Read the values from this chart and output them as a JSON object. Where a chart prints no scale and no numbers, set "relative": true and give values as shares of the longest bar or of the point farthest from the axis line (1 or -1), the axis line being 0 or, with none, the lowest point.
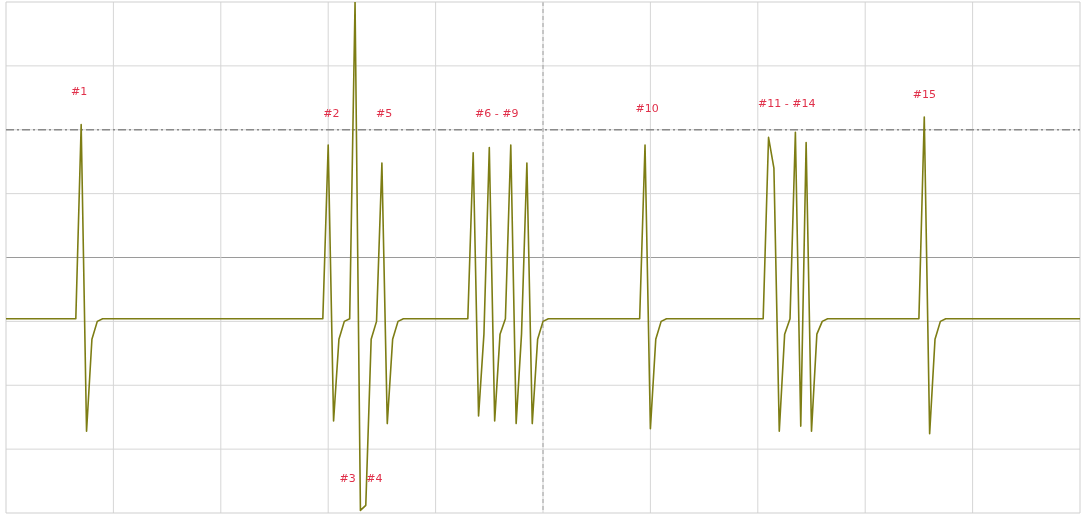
{
  "chart_data": {
    "type": "line",
    "relative": true,
    "categories": [
      null,
      null,
      null,
      null,
      null,
      null,
      null,
      null,
      null,
      null,
      null,
      null,
      null,
      null,
      null,
      null,
      null,
      null,
      null,
      null,
      null,
      null,
      null,
      null,
      null,
      null,
      null,
      null,
      null,
      null,
      null,
      null,
      null,
      null,
      null,
      null,
      null,
      null,
      null,
      null,
      null,
      null,
      null,
      null,
      null,
      null,
      null,
      null,
      null,
      null,
      null,
      null,
      null,
      null,
      null,
      null,
      null,
      null,
      null,
      null,
      null,
      null,
      null,
      null,
      null,
      null,
      null,
      null,
      null,
      null,
      null,
      null,
      null,
      null,
      null,
      null,
      null,
      null,
      null,
      null,
      null,
      null,
      null,
      null,
      null,
      null,
      null,
      null,
      null,
      null,
      null,
      null,
      null,
      null,
      null,
      null,
      null,
      null,
      null,
      null,
      null,
      null,
      null,
      null,
      null,
      null,
      null,
      null,
      null,
      null,
      null,
      null,
      null,
      null,
      null,
      null,
      null,
      null,
      null,
      null,
      null,
      null,
      null,
      null,
      null,
      null,
      null,
      null,
      null,
      null,
      null,
      null,
      null,
      null,
      null,
      null,
      null,
      null,
      null,
      null,
      null,
      null,
      null,
      null,
      null,
      null,
      null,
      null,
      null,
      null,
      null,
      null,
      null,
      null,
      null,
      null,
      null,
      null,
      null,
      null,
      null,
      null,
      null,
      null,
      null,
      null,
      null,
      null,
      null,
      null,
      null,
      null,
      null,
      null,
      null,
      null,
      null,
      null,
      null,
      null,
      null,
      null,
      null,
      null,
      null,
      null,
      null,
      null,
      null,
      null,
      null,
      null,
      null,
      null,
      null,
      null,
      null,
      null,
      null,
      null,
      null
    ],
    "series": [
      {
        "color": "#7d7d14",
        "values": [
          -0.24,
          -0.24,
          -0.24,
          -0.24,
          -0.24,
          -0.24,
          -0.24,
          -0.24,
          -0.24,
          -0.24,
          -0.24,
          -0.24,
          -0.24,
          -0.24,
          0.52,
          -0.68,
          -0.32,
          -0.25,
          -0.24,
          -0.24,
          -0.24,
          -0.24,
          -0.24,
          -0.24,
          -0.24,
          -0.24,
          -0.24,
          -0.24,
          -0.24,
          -0.24,
          -0.24,
          -0.24,
          -0.24,
          -0.24,
          -0.24,
          -0.24,
          -0.24,
          -0.24,
          -0.24,
          -0.24,
          -0.24,
          -0.24,
          -0.24,
          -0.24,
          -0.24,
          -0.24,
          -0.24,
          -0.24,
          -0.24,
          -0.24,
          -0.24,
          -0.24,
          -0.24,
          -0.24,
          -0.24,
          -0.24,
          -0.24,
          -0.24,
          -0.24,
          -0.24,
          0.44,
          -0.64,
          -0.32,
          -0.25,
          -0.24,
          1.0,
          -0.99,
          -0.97,
          -0.32,
          -0.25,
          0.37,
          -0.65,
          -0.32,
          -0.25,
          -0.24,
          -0.24,
          -0.24,
          -0.24,
          -0.24,
          -0.24,
          -0.24,
          -0.24,
          -0.24,
          -0.24,
          -0.24,
          -0.24,
          -0.24,
          0.41,
          -0.62,
          -0.3,
          0.43,
          -0.64,
          -0.3,
          -0.24,
          0.44,
          -0.65,
          -0.3,
          0.37,
          -0.65,
          -0.32,
          -0.25,
          -0.24,
          -0.24,
          -0.24,
          -0.24,
          -0.24,
          -0.24,
          -0.24,
          -0.24,
          -0.24,
          -0.24,
          -0.24,
          -0.24,
          -0.24,
          -0.24,
          -0.24,
          -0.24,
          -0.24,
          -0.24,
          0.44,
          -0.67,
          -0.32,
          -0.25,
          -0.24,
          -0.24,
          -0.24,
          -0.24,
          -0.24,
          -0.24,
          -0.24,
          -0.24,
          -0.24,
          -0.24,
          -0.24,
          -0.24,
          -0.24,
          -0.24,
          -0.24,
          -0.24,
          -0.24,
          -0.24,
          -0.24,
          0.47,
          0.35,
          -0.68,
          -0.3,
          -0.24,
          0.49,
          -0.66,
          0.45,
          -0.68,
          -0.3,
          -0.25,
          -0.24,
          -0.24,
          -0.24,
          -0.24,
          -0.24,
          -0.24,
          -0.24,
          -0.24,
          -0.24,
          -0.24,
          -0.24,
          -0.24,
          -0.24,
          -0.24,
          -0.24,
          -0.24,
          -0.24,
          -0.24,
          0.55,
          -0.69,
          -0.32,
          -0.25,
          -0.24,
          -0.24,
          -0.24,
          -0.24,
          -0.24,
          -0.24,
          -0.24,
          -0.24,
          -0.24,
          -0.24,
          -0.24,
          -0.24,
          -0.24,
          -0.24,
          -0.24,
          -0.24,
          -0.24,
          -0.24,
          -0.24,
          -0.24,
          -0.24,
          -0.24,
          -0.24,
          -0.24,
          -0.24,
          -0.24
        ]
      },
      {
        "color": "#8a8a8a",
        "line_style": "dashed",
        "values": [
          0.5,
          0.5,
          0.5,
          0.5,
          0.5,
          0.5,
          0.5,
          0.5,
          0.5,
          0.5,
          0.5,
          0.5,
          0.5,
          0.5,
          0.5,
          0.5,
          0.5,
          0.5,
          0.5,
          0.5,
          0.5,
          0.5,
          0.5,
          0.5,
          0.5,
          0.5,
          0.5,
          0.5,
          0.5,
          0.5,
          0.5,
          0.5,
          0.5,
          0.5,
          0.5,
          0.5,
          0.5,
          0.5,
          0.5,
          0.5,
          0.5,
          0.5,
          0.5,
          0.5,
          0.5,
          0.5,
          0.5,
          0.5,
          0.5,
          0.5,
          0.5,
          0.5,
          0.5,
          0.5,
          0.5,
          0.5,
          0.5,
          0.5,
          0.5,
          0.5,
          0.5,
          0.5,
          0.5,
          0.5,
          0.5,
          0.5,
          0.5,
          0.5,
          0.5,
          0.5,
          0.5,
          0.5,
          0.5,
          0.5,
          0.5,
          0.5,
          0.5,
          0.5,
          0.5,
          0.5,
          0.5,
          0.5,
          0.5,
          0.5,
          0.5,
          0.5,
          0.5,
          0.5,
          0.5,
          0.5,
          0.5,
          0.5,
          0.5,
          0.5,
          0.5,
          0.5,
          0.5,
          0.5,
          0.5,
          0.5,
          0.5,
          0.5,
          0.5,
          0.5,
          0.5,
          0.5,
          0.5,
          0.5,
          0.5,
          0.5,
          0.5,
          0.5,
          0.5,
          0.5,
          0.5,
          0.5,
          0.5,
          0.5,
          0.5,
          0.5,
          0.5,
          0.5,
          0.5,
          0.5,
          0.5,
          0.5,
          0.5,
          0.5,
          0.5,
          0.5,
          0.5,
          0.5,
          0.5,
          0.5,
          0.5,
          0.5,
          0.5,
          0.5,
          0.5,
          0.5,
          0.5,
          0.5,
          0.5,
          0.5,
          0.5,
          0.5,
          0.5,
          0.5,
          0.5,
          0.5,
          0.5,
          0.5,
          0.5,
          0.5,
          0.5,
          0.5,
          0.5,
          0.5,
          0.5,
          0.5,
          0.5,
          0.5,
          0.5,
          0.5,
          0.5,
          0.5,
          0.5,
          0.5,
          0.5,
          0.5,
          0.5,
          0.5,
          0.5,
          0.5,
          0.5,
          0.5,
          0.5,
          0.5,
          0.5,
          0.5,
          0.5,
          0.5,
          0.5,
          0.5,
          0.5,
          0.5,
          0.5,
          0.5,
          0.5,
          0.5,
          0.5,
          0.5,
          0.5,
          0.5,
          0.5,
          0.5,
          0.5,
          0.5,
          0.5,
          0.5,
          0.5
        ]
      }
    ],
    "annotations": [
      "#1",
      "#2",
      "#5",
      "#6 - #9",
      "#10",
      "#11 - #14",
      "#15",
      "#3",
      "#4"
    ],
    "grid": true,
    "legend": false,
    "marker": "none",
    "line_style": "solid"
  }
}
